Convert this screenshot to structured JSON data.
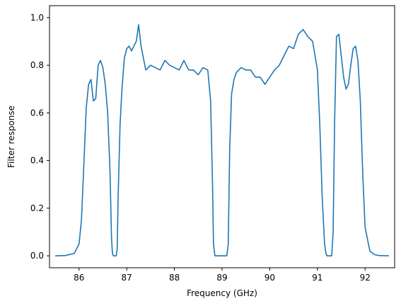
{
  "chart_data": {
    "type": "line",
    "title": "",
    "xlabel": "Frequency (GHz)",
    "ylabel": "Filter response",
    "xlim": [
      85.38,
      92.62
    ],
    "ylim": [
      -0.05,
      1.05
    ],
    "xticks": [
      86,
      87,
      88,
      89,
      90,
      91,
      92
    ],
    "xtick_labels": [
      "86",
      "87",
      "88",
      "89",
      "90",
      "91",
      "92"
    ],
    "yticks": [
      0.0,
      0.2,
      0.4,
      0.6,
      0.8,
      1.0
    ],
    "ytick_labels": [
      "0.0",
      "0.2",
      "0.4",
      "0.6",
      "0.8",
      "1.0"
    ],
    "grid": false,
    "legend": "none",
    "series": [
      {
        "color": "#1f77b4",
        "x": [
          85.5,
          85.7,
          85.9,
          86.0,
          86.05,
          86.1,
          86.15,
          86.2,
          86.25,
          86.3,
          86.35,
          86.4,
          86.45,
          86.5,
          86.55,
          86.6,
          86.65,
          86.68,
          86.7,
          86.72,
          86.78,
          86.8,
          86.82,
          86.86,
          86.9,
          86.95,
          87.0,
          87.05,
          87.1,
          87.2,
          87.25,
          87.3,
          87.4,
          87.5,
          87.6,
          87.7,
          87.8,
          87.9,
          88.0,
          88.1,
          88.2,
          88.3,
          88.4,
          88.5,
          88.6,
          88.7,
          88.76,
          88.8,
          88.82,
          88.85,
          89.1,
          89.13,
          89.16,
          89.2,
          89.25,
          89.3,
          89.4,
          89.5,
          89.6,
          89.7,
          89.8,
          89.9,
          90.0,
          90.1,
          90.2,
          90.3,
          90.4,
          90.5,
          90.6,
          90.7,
          90.8,
          90.9,
          91.0,
          91.05,
          91.1,
          91.15,
          91.18,
          91.2,
          91.22,
          91.3,
          91.33,
          91.36,
          91.4,
          91.45,
          91.5,
          91.55,
          91.6,
          91.65,
          91.7,
          91.75,
          91.8,
          91.85,
          91.9,
          91.95,
          92.0,
          92.1,
          92.2,
          92.3,
          92.5
        ],
        "y": [
          0.0,
          0.001,
          0.01,
          0.05,
          0.15,
          0.38,
          0.62,
          0.72,
          0.74,
          0.65,
          0.66,
          0.8,
          0.82,
          0.79,
          0.72,
          0.6,
          0.35,
          0.08,
          0.01,
          0.0,
          0.0,
          0.03,
          0.25,
          0.55,
          0.7,
          0.83,
          0.87,
          0.88,
          0.86,
          0.9,
          0.97,
          0.88,
          0.78,
          0.8,
          0.79,
          0.78,
          0.82,
          0.8,
          0.79,
          0.78,
          0.82,
          0.78,
          0.78,
          0.76,
          0.79,
          0.78,
          0.65,
          0.3,
          0.05,
          0.0,
          0.0,
          0.05,
          0.45,
          0.68,
          0.74,
          0.77,
          0.79,
          0.78,
          0.78,
          0.75,
          0.75,
          0.72,
          0.75,
          0.78,
          0.8,
          0.84,
          0.88,
          0.87,
          0.93,
          0.95,
          0.92,
          0.9,
          0.78,
          0.55,
          0.25,
          0.05,
          0.01,
          0.0,
          0.0,
          0.0,
          0.1,
          0.55,
          0.92,
          0.93,
          0.84,
          0.75,
          0.7,
          0.72,
          0.8,
          0.87,
          0.88,
          0.82,
          0.65,
          0.35,
          0.12,
          0.02,
          0.005,
          0.001,
          0.0
        ]
      }
    ]
  }
}
